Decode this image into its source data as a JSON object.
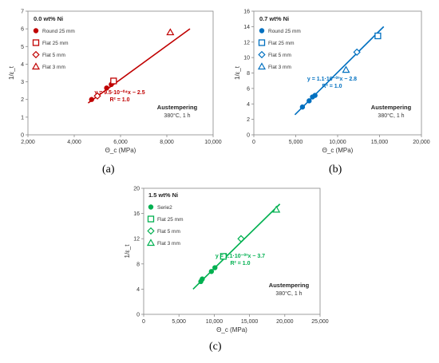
{
  "panel_labels": [
    "(a)",
    "(b)",
    "(c)"
  ],
  "chart_data": [
    {
      "type": "scatter",
      "title": "0.0 wt% Ni",
      "color": "#c00000",
      "xlabel": "Θ_c (MPa)",
      "ylabel": "1/ε_t",
      "xlim": [
        2000,
        10000
      ],
      "ylim": [
        0,
        7
      ],
      "xticks": [
        "2,000",
        "4,000",
        "6,000",
        "8,000",
        "10,000"
      ],
      "yticks": [
        "0",
        "1",
        "2",
        "3",
        "4",
        "5",
        "6",
        "7"
      ],
      "grid": false,
      "legend_position": "top-left",
      "series": [
        {
          "name": "Round 25 mm",
          "marker": "circle-filled",
          "points": [
            [
              4750,
              2.0
            ],
            [
              5400,
              2.65
            ],
            [
              5600,
              2.85
            ]
          ]
        },
        {
          "name": "Flat 25 mm",
          "marker": "square-open",
          "points": [
            [
              5700,
              3.05
            ]
          ]
        },
        {
          "name": "Flat 5 mm",
          "marker": "diamond-open",
          "points": [
            [
              5000,
              2.2
            ]
          ]
        },
        {
          "name": "Flat 3 mm",
          "marker": "triangle-open",
          "points": [
            [
              8150,
              5.8
            ]
          ]
        }
      ],
      "fit_line": {
        "x": [
          4600,
          9000
        ],
        "y": [
          1.8,
          6.0
        ]
      },
      "annotations": {
        "equation": "y = 9.5·10⁻⁰⁴x − 2.5",
        "r2": "R² = 1.0",
        "condition_title": "Austempering",
        "condition_sub": "380°C, 1 h"
      }
    },
    {
      "type": "scatter",
      "title": "0.7 wt% Ni",
      "color": "#0070c0",
      "xlabel": "Θ_c (MPa)",
      "ylabel": "1/ε_t",
      "xlim": [
        0,
        20000
      ],
      "ylim": [
        0,
        16
      ],
      "xticks": [
        "0",
        "5,000",
        "10,000",
        "15,000",
        "20,000"
      ],
      "yticks": [
        "0",
        "2",
        "4",
        "6",
        "8",
        "10",
        "12",
        "14",
        "16"
      ],
      "grid": false,
      "legend_position": "top-left",
      "series": [
        {
          "name": "Round 25 mm",
          "marker": "circle-filled",
          "points": [
            [
              5800,
              3.6
            ],
            [
              6600,
              4.4
            ],
            [
              7000,
              4.9
            ],
            [
              7300,
              5.1
            ]
          ]
        },
        {
          "name": "Flat 25 mm",
          "marker": "square-open",
          "points": [
            [
              14800,
              12.8
            ]
          ]
        },
        {
          "name": "Flat 5 mm",
          "marker": "diamond-open",
          "points": [
            [
              12300,
              10.7
            ]
          ]
        },
        {
          "name": "Flat 3 mm",
          "marker": "triangle-open",
          "points": [
            [
              11000,
              8.4
            ]
          ]
        }
      ],
      "fit_line": {
        "x": [
          4900,
          15500
        ],
        "y": [
          2.6,
          14.0
        ]
      },
      "annotations": {
        "equation": "y = 1.1·10⁻⁰³x − 2.8",
        "r2": "R² = 1.0",
        "condition_title": "Austempering",
        "condition_sub": "380°C, 1 h"
      }
    },
    {
      "type": "scatter",
      "title": "1.5 wt% Ni",
      "color": "#00b050",
      "xlabel": "Θ_c (MPa)",
      "ylabel": "1/ε_t",
      "xlim": [
        0,
        25000
      ],
      "ylim": [
        0,
        20
      ],
      "xticks": [
        "0",
        "5,000",
        "10,000",
        "15,000",
        "20,000",
        "25,000"
      ],
      "yticks": [
        "0",
        "4",
        "8",
        "12",
        "16",
        "20"
      ],
      "grid": false,
      "legend_position": "top-left",
      "series": [
        {
          "name": "Serie2",
          "marker": "circle-filled",
          "points": [
            [
              8100,
              5.2
            ],
            [
              8300,
              5.6
            ],
            [
              9600,
              6.8
            ],
            [
              10100,
              7.4
            ]
          ]
        },
        {
          "name": "Flat 25 mm",
          "marker": "square-open",
          "points": [
            [
              11300,
              9.2
            ]
          ]
        },
        {
          "name": "Flat 5 mm",
          "marker": "diamond-open",
          "points": [
            [
              13800,
              12.0
            ]
          ]
        },
        {
          "name": "Flat 3 mm",
          "marker": "triangle-open",
          "points": [
            [
              18800,
              16.6
            ]
          ]
        }
      ],
      "fit_line": {
        "x": [
          7000,
          19300
        ],
        "y": [
          4.0,
          17.5
        ]
      },
      "annotations": {
        "equation": "y = 1.1·10⁻⁰³x − 3.7",
        "r2": "R² = 1.0",
        "condition_title": "Austempering",
        "condition_sub": "380°C, 1 h"
      }
    }
  ]
}
